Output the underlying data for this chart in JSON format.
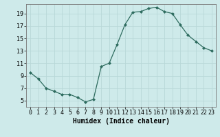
{
  "x": [
    0,
    1,
    2,
    3,
    4,
    5,
    6,
    7,
    8,
    9,
    10,
    11,
    12,
    13,
    14,
    15,
    16,
    17,
    18,
    19,
    20,
    21,
    22,
    23
  ],
  "y": [
    9.5,
    8.5,
    7.0,
    6.5,
    6.0,
    6.0,
    5.5,
    4.8,
    5.2,
    10.5,
    11.0,
    14.0,
    17.2,
    19.2,
    19.3,
    19.8,
    20.0,
    19.3,
    19.0,
    17.2,
    15.5,
    14.5,
    13.5,
    13.0
  ],
  "line_color": "#2d6b5e",
  "marker": "D",
  "marker_size": 2.0,
  "bg_color": "#ceeaea",
  "grid_color": "#b8d8d8",
  "xlabel": "Humidex (Indice chaleur)",
  "xlabel_fontsize": 7,
  "tick_fontsize": 6,
  "xlim": [
    -0.5,
    23.5
  ],
  "ylim": [
    4.0,
    20.5
  ],
  "yticks": [
    5,
    7,
    9,
    11,
    13,
    15,
    17,
    19
  ],
  "xticks": [
    0,
    1,
    2,
    3,
    4,
    5,
    6,
    7,
    8,
    9,
    10,
    11,
    12,
    13,
    14,
    15,
    16,
    17,
    18,
    19,
    20,
    21,
    22,
    23
  ],
  "xtick_labels": [
    "0",
    "1",
    "2",
    "3",
    "4",
    "5",
    "6",
    "7",
    "8",
    "9",
    "10",
    "11",
    "12",
    "13",
    "14",
    "15",
    "16",
    "17",
    "18",
    "19",
    "20",
    "21",
    "22",
    "23"
  ]
}
